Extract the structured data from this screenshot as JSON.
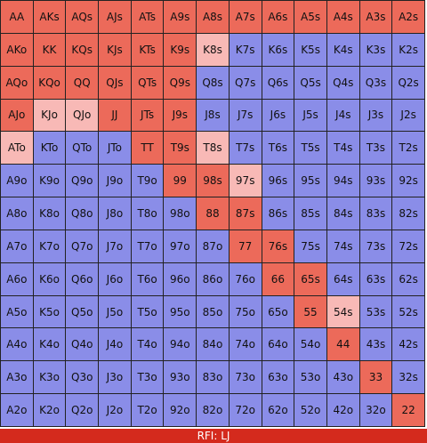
{
  "colors": {
    "raise": "#ec6a5a",
    "fold": "#8a8de8",
    "mixed": "#f8b9b6",
    "footer": "#d42a1d"
  },
  "grid": {
    "rows": [
      [
        [
          "AA",
          "r"
        ],
        [
          "AKs",
          "r"
        ],
        [
          "AQs",
          "r"
        ],
        [
          "AJs",
          "r"
        ],
        [
          "ATs",
          "r"
        ],
        [
          "A9s",
          "r"
        ],
        [
          "A8s",
          "r"
        ],
        [
          "A7s",
          "r"
        ],
        [
          "A6s",
          "r"
        ],
        [
          "A5s",
          "r"
        ],
        [
          "A4s",
          "r"
        ],
        [
          "A3s",
          "r"
        ],
        [
          "A2s",
          "r"
        ]
      ],
      [
        [
          "AKo",
          "r"
        ],
        [
          "KK",
          "r"
        ],
        [
          "KQs",
          "r"
        ],
        [
          "KJs",
          "r"
        ],
        [
          "KTs",
          "r"
        ],
        [
          "K9s",
          "r"
        ],
        [
          "K8s",
          "p"
        ],
        [
          "K7s",
          "b"
        ],
        [
          "K6s",
          "b"
        ],
        [
          "K5s",
          "b"
        ],
        [
          "K4s",
          "b"
        ],
        [
          "K3s",
          "b"
        ],
        [
          "K2s",
          "b"
        ]
      ],
      [
        [
          "AQo",
          "r"
        ],
        [
          "KQo",
          "r"
        ],
        [
          "QQ",
          "r"
        ],
        [
          "QJs",
          "r"
        ],
        [
          "QTs",
          "r"
        ],
        [
          "Q9s",
          "r"
        ],
        [
          "Q8s",
          "b"
        ],
        [
          "Q7s",
          "b"
        ],
        [
          "Q6s",
          "b"
        ],
        [
          "Q5s",
          "b"
        ],
        [
          "Q4s",
          "b"
        ],
        [
          "Q3s",
          "b"
        ],
        [
          "Q2s",
          "b"
        ]
      ],
      [
        [
          "AJo",
          "r"
        ],
        [
          "KJo",
          "p"
        ],
        [
          "QJo",
          "p"
        ],
        [
          "JJ",
          "r"
        ],
        [
          "JTs",
          "r"
        ],
        [
          "J9s",
          "r"
        ],
        [
          "J8s",
          "b"
        ],
        [
          "J7s",
          "b"
        ],
        [
          "J6s",
          "b"
        ],
        [
          "J5s",
          "b"
        ],
        [
          "J4s",
          "b"
        ],
        [
          "J3s",
          "b"
        ],
        [
          "J2s",
          "b"
        ]
      ],
      [
        [
          "ATo",
          "p"
        ],
        [
          "KTo",
          "b"
        ],
        [
          "QTo",
          "b"
        ],
        [
          "JTo",
          "b"
        ],
        [
          "TT",
          "r"
        ],
        [
          "T9s",
          "r"
        ],
        [
          "T8s",
          "p"
        ],
        [
          "T7s",
          "b"
        ],
        [
          "T6s",
          "b"
        ],
        [
          "T5s",
          "b"
        ],
        [
          "T4s",
          "b"
        ],
        [
          "T3s",
          "b"
        ],
        [
          "T2s",
          "b"
        ]
      ],
      [
        [
          "A9o",
          "b"
        ],
        [
          "K9o",
          "b"
        ],
        [
          "Q9o",
          "b"
        ],
        [
          "J9o",
          "b"
        ],
        [
          "T9o",
          "b"
        ],
        [
          "99",
          "r"
        ],
        [
          "98s",
          "r"
        ],
        [
          "97s",
          "p"
        ],
        [
          "96s",
          "b"
        ],
        [
          "95s",
          "b"
        ],
        [
          "94s",
          "b"
        ],
        [
          "93s",
          "b"
        ],
        [
          "92s",
          "b"
        ]
      ],
      [
        [
          "A8o",
          "b"
        ],
        [
          "K8o",
          "b"
        ],
        [
          "Q8o",
          "b"
        ],
        [
          "J8o",
          "b"
        ],
        [
          "T8o",
          "b"
        ],
        [
          "98o",
          "b"
        ],
        [
          "88",
          "r"
        ],
        [
          "87s",
          "r"
        ],
        [
          "86s",
          "b"
        ],
        [
          "85s",
          "b"
        ],
        [
          "84s",
          "b"
        ],
        [
          "83s",
          "b"
        ],
        [
          "82s",
          "b"
        ]
      ],
      [
        [
          "A7o",
          "b"
        ],
        [
          "K7o",
          "b"
        ],
        [
          "Q7o",
          "b"
        ],
        [
          "J7o",
          "b"
        ],
        [
          "T7o",
          "b"
        ],
        [
          "97o",
          "b"
        ],
        [
          "87o",
          "b"
        ],
        [
          "77",
          "r"
        ],
        [
          "76s",
          "r"
        ],
        [
          "75s",
          "b"
        ],
        [
          "74s",
          "b"
        ],
        [
          "73s",
          "b"
        ],
        [
          "72s",
          "b"
        ]
      ],
      [
        [
          "A6o",
          "b"
        ],
        [
          "K6o",
          "b"
        ],
        [
          "Q6o",
          "b"
        ],
        [
          "J6o",
          "b"
        ],
        [
          "T6o",
          "b"
        ],
        [
          "96o",
          "b"
        ],
        [
          "86o",
          "b"
        ],
        [
          "76o",
          "b"
        ],
        [
          "66",
          "r"
        ],
        [
          "65s",
          "r"
        ],
        [
          "64s",
          "b"
        ],
        [
          "63s",
          "b"
        ],
        [
          "62s",
          "b"
        ]
      ],
      [
        [
          "A5o",
          "b"
        ],
        [
          "K5o",
          "b"
        ],
        [
          "Q5o",
          "b"
        ],
        [
          "J5o",
          "b"
        ],
        [
          "T5o",
          "b"
        ],
        [
          "95o",
          "b"
        ],
        [
          "85o",
          "b"
        ],
        [
          "75o",
          "b"
        ],
        [
          "65o",
          "b"
        ],
        [
          "55",
          "r"
        ],
        [
          "54s",
          "p"
        ],
        [
          "53s",
          "b"
        ],
        [
          "52s",
          "b"
        ]
      ],
      [
        [
          "A4o",
          "b"
        ],
        [
          "K4o",
          "b"
        ],
        [
          "Q4o",
          "b"
        ],
        [
          "J4o",
          "b"
        ],
        [
          "T4o",
          "b"
        ],
        [
          "94o",
          "b"
        ],
        [
          "84o",
          "b"
        ],
        [
          "74o",
          "b"
        ],
        [
          "64o",
          "b"
        ],
        [
          "54o",
          "b"
        ],
        [
          "44",
          "r"
        ],
        [
          "43s",
          "b"
        ],
        [
          "42s",
          "b"
        ]
      ],
      [
        [
          "A3o",
          "b"
        ],
        [
          "K3o",
          "b"
        ],
        [
          "Q3o",
          "b"
        ],
        [
          "J3o",
          "b"
        ],
        [
          "T3o",
          "b"
        ],
        [
          "93o",
          "b"
        ],
        [
          "83o",
          "b"
        ],
        [
          "73o",
          "b"
        ],
        [
          "63o",
          "b"
        ],
        [
          "53o",
          "b"
        ],
        [
          "43o",
          "b"
        ],
        [
          "33",
          "r"
        ],
        [
          "32s",
          "b"
        ]
      ],
      [
        [
          "A2o",
          "b"
        ],
        [
          "K2o",
          "b"
        ],
        [
          "Q2o",
          "b"
        ],
        [
          "J2o",
          "b"
        ],
        [
          "T2o",
          "b"
        ],
        [
          "92o",
          "b"
        ],
        [
          "82o",
          "b"
        ],
        [
          "72o",
          "b"
        ],
        [
          "62o",
          "b"
        ],
        [
          "52o",
          "b"
        ],
        [
          "42o",
          "b"
        ],
        [
          "32o",
          "b"
        ],
        [
          "22",
          "r"
        ]
      ]
    ]
  },
  "footer": {
    "label": "RFI: LJ"
  }
}
